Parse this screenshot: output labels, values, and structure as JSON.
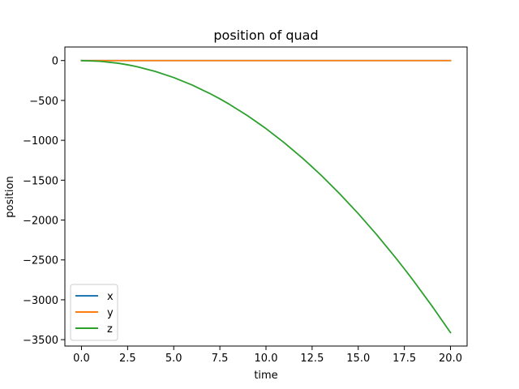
{
  "chart_data": {
    "type": "line",
    "title": "position of quad",
    "xlabel": "time",
    "ylabel": "position",
    "xlim": [
      -0.9,
      20.9
    ],
    "ylim": [
      -3580,
      170
    ],
    "xticks": [
      0.0,
      2.5,
      5.0,
      7.5,
      10.0,
      12.5,
      15.0,
      17.5,
      20.0
    ],
    "xtick_labels": [
      "0.0",
      "2.5",
      "5.0",
      "7.5",
      "10.0",
      "12.5",
      "15.0",
      "17.5",
      "20.0"
    ],
    "yticks": [
      0,
      -500,
      -1000,
      -1500,
      -2000,
      -2500,
      -3000,
      -3500
    ],
    "ytick_labels": [
      "0",
      "−500",
      "−1000",
      "−1500",
      "−2000",
      "−2500",
      "−3000",
      "−3500"
    ],
    "grid": false,
    "legend": "lower-left",
    "series": [
      {
        "name": "x",
        "color": "#1f77b4",
        "x": [
          0,
          2.5,
          5,
          7.5,
          10,
          12.5,
          15,
          17.5,
          20
        ],
        "y": [
          0,
          0,
          0,
          0,
          0,
          0,
          0,
          0,
          0
        ]
      },
      {
        "name": "y",
        "color": "#ff7f0e",
        "x": [
          0,
          2.5,
          5,
          7.5,
          10,
          12.5,
          15,
          17.5,
          20
        ],
        "y": [
          0,
          0,
          0,
          0,
          0,
          0,
          0,
          0,
          0
        ]
      },
      {
        "name": "z",
        "color": "#2ca02c",
        "x": [
          0,
          1,
          2,
          2.5,
          3,
          4,
          5,
          6,
          7,
          7.5,
          8,
          9,
          10,
          11,
          12,
          12.5,
          13,
          14,
          15,
          16,
          17,
          17.5,
          18,
          19,
          20
        ],
        "y": [
          0,
          -9,
          -34,
          -53,
          -77,
          -136,
          -213,
          -307,
          -418,
          -480,
          -546,
          -691,
          -853,
          -1032,
          -1228,
          -1333,
          -1441,
          -1672,
          -1919,
          -2183,
          -2465,
          -2612,
          -2763,
          -3079,
          -3411
        ]
      }
    ]
  }
}
